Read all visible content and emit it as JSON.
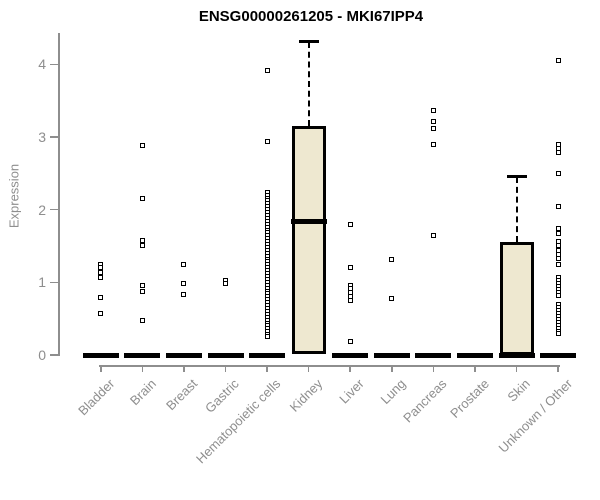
{
  "title": "ENSG00000261205 - MKI67IPP4",
  "chart_data": {
    "type": "boxplot",
    "title": "ENSG00000261205 - MKI67IPP4",
    "ylabel": "Expression",
    "xlabel": "",
    "ylim": [
      0,
      4.35
    ],
    "yticks": [
      0,
      1,
      2,
      3,
      4
    ],
    "grid": false,
    "legend": "none",
    "colors": {
      "box_fill": "#EEE8D0",
      "box_border": "#000000",
      "median": "#000000",
      "axis": "#8e8e8e",
      "title_text": "#000000",
      "background": "#ffffff"
    },
    "categories": [
      "Bladder",
      "Brain",
      "Breast",
      "Gastric",
      "Hematopoietic cells",
      "Kidney",
      "Liver",
      "Lung",
      "Pancreas",
      "Prostate",
      "Skin",
      "Unknown / Other"
    ],
    "series": [
      {
        "name": "Bladder",
        "q1": 0,
        "median": 0,
        "q3": 0,
        "whisker_low": 0,
        "whisker_high": 0,
        "outliers": [
          1.25,
          1.21,
          1.14,
          1.06,
          0.79,
          0.57
        ]
      },
      {
        "name": "Brain",
        "q1": 0,
        "median": 0,
        "q3": 0,
        "whisker_low": 0,
        "whisker_high": 0,
        "outliers": [
          2.88,
          2.15,
          1.57,
          1.5,
          0.95,
          0.87,
          0.47
        ]
      },
      {
        "name": "Breast",
        "q1": 0,
        "median": 0,
        "q3": 0,
        "whisker_low": 0,
        "whisker_high": 0,
        "outliers": [
          1.24,
          0.99,
          0.83
        ]
      },
      {
        "name": "Gastric",
        "q1": 0,
        "median": 0,
        "q3": 0,
        "whisker_low": 0,
        "whisker_high": 0,
        "outliers": [
          1.03,
          0.98
        ]
      },
      {
        "name": "Hematopoietic cells",
        "q1": 0,
        "median": 0,
        "q3": 0,
        "whisker_low": 0,
        "whisker_high": 0,
        "outliers": [
          3.92,
          2.94,
          2.24,
          2.2,
          2.16,
          2.12,
          2.08,
          2.04,
          2.0,
          1.96,
          1.92,
          1.88,
          1.84,
          1.8,
          1.76,
          1.72,
          1.68,
          1.64,
          1.6,
          1.56,
          1.52,
          1.48,
          1.44,
          1.4,
          1.36,
          1.32,
          1.28,
          1.24,
          1.2,
          1.16,
          1.12,
          1.08,
          1.04,
          1.0,
          0.96,
          0.92,
          0.88,
          0.84,
          0.8,
          0.76,
          0.72,
          0.68,
          0.64,
          0.6,
          0.56,
          0.52,
          0.48,
          0.44,
          0.4,
          0.36,
          0.32,
          0.28,
          0.25
        ]
      },
      {
        "name": "Kidney",
        "q1": 0.02,
        "median": 1.84,
        "q3": 3.15,
        "whisker_low": 0.02,
        "whisker_high": 4.31,
        "outliers": []
      },
      {
        "name": "Liver",
        "q1": 0,
        "median": 0,
        "q3": 0,
        "whisker_low": 0,
        "whisker_high": 0,
        "outliers": [
          1.8,
          1.2,
          0.96,
          0.91,
          0.86,
          0.81,
          0.75,
          0.18
        ]
      },
      {
        "name": "Lung",
        "q1": 0,
        "median": 0,
        "q3": 0,
        "whisker_low": 0,
        "whisker_high": 0,
        "outliers": [
          1.32,
          0.78
        ]
      },
      {
        "name": "Pancreas",
        "q1": 0,
        "median": 0,
        "q3": 0,
        "whisker_low": 0,
        "whisker_high": 0,
        "outliers": [
          3.37,
          3.22,
          3.12,
          2.89,
          1.65
        ]
      },
      {
        "name": "Prostate",
        "q1": 0,
        "median": 0,
        "q3": 0,
        "whisker_low": 0,
        "whisker_high": 0,
        "outliers": []
      },
      {
        "name": "Skin",
        "q1": 0,
        "median": 0,
        "q3": 1.56,
        "whisker_low": 0,
        "whisker_high": 2.45,
        "outliers": []
      },
      {
        "name": "Unknown / Other",
        "q1": 0,
        "median": 0,
        "q3": 0,
        "whisker_low": 0,
        "whisker_high": 0,
        "outliers": [
          4.05,
          2.9,
          2.84,
          2.78,
          2.5,
          2.04,
          1.74,
          1.67,
          1.56,
          1.5,
          1.44,
          1.38,
          1.33,
          1.24,
          1.06,
          1.02,
          0.98,
          0.94,
          0.9,
          0.86,
          0.82,
          0.69,
          0.65,
          0.61,
          0.57,
          0.53,
          0.49,
          0.45,
          0.41,
          0.37,
          0.33,
          0.29
        ]
      }
    ]
  }
}
